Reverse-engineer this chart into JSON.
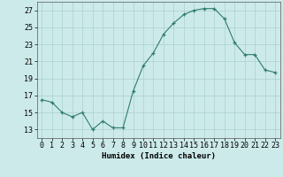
{
  "x": [
    0,
    1,
    2,
    3,
    4,
    5,
    6,
    7,
    8,
    9,
    10,
    11,
    12,
    13,
    14,
    15,
    16,
    17,
    18,
    19,
    20,
    21,
    22,
    23
  ],
  "y": [
    16.5,
    16.2,
    15.0,
    14.5,
    15.0,
    13.0,
    14.0,
    13.2,
    13.2,
    17.5,
    20.5,
    22.0,
    24.2,
    25.5,
    26.5,
    27.0,
    27.2,
    27.2,
    26.0,
    23.2,
    21.8,
    21.8,
    20.0,
    19.7
  ],
  "xlabel": "Humidex (Indice chaleur)",
  "xlim": [
    -0.5,
    23.5
  ],
  "ylim": [
    12,
    28
  ],
  "yticks": [
    13,
    15,
    17,
    19,
    21,
    23,
    25,
    27
  ],
  "xticks": [
    0,
    1,
    2,
    3,
    4,
    5,
    6,
    7,
    8,
    9,
    10,
    11,
    12,
    13,
    14,
    15,
    16,
    17,
    18,
    19,
    20,
    21,
    22,
    23
  ],
  "xtick_labels": [
    "0",
    "1",
    "2",
    "3",
    "4",
    "5",
    "6",
    "7",
    "8",
    "9",
    "10",
    "11",
    "12",
    "13",
    "14",
    "15",
    "16",
    "17",
    "18",
    "19",
    "20",
    "21",
    "22",
    "23"
  ],
  "line_color": "#2e7d6e",
  "marker": "+",
  "bg_color": "#cdeaea",
  "grid_color": "#aacfcf",
  "label_fontsize": 6.5,
  "tick_fontsize": 6.0
}
